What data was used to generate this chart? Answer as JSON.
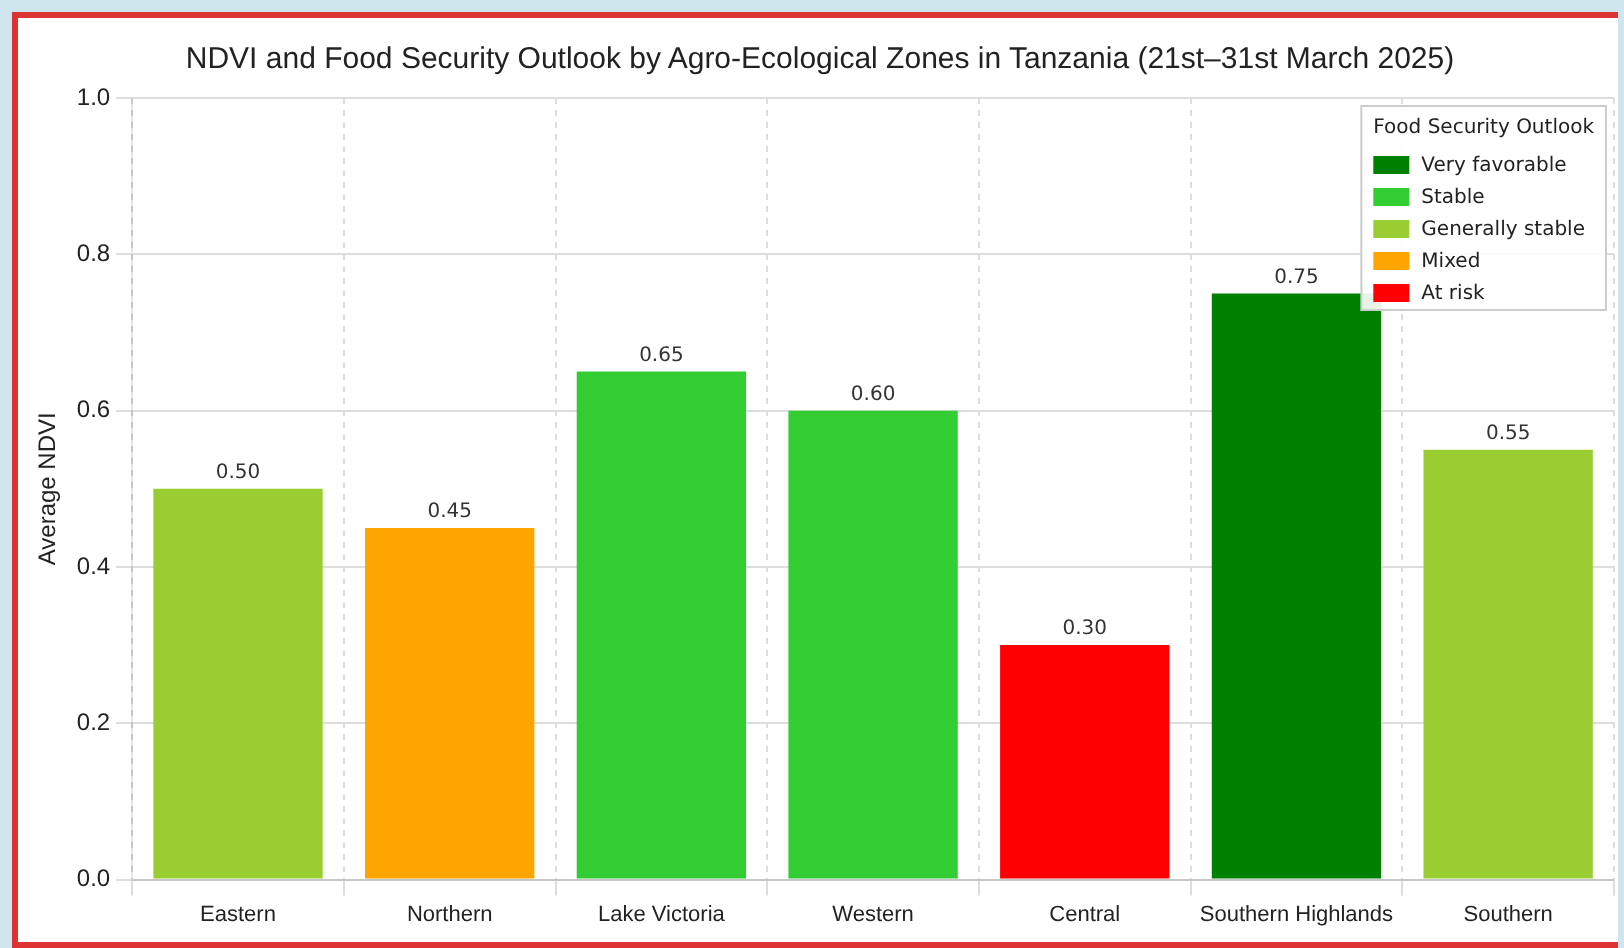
{
  "chart_data": {
    "type": "bar",
    "title": "NDVI and Food Security Outlook by Agro-Ecological Zones in Tanzania (21st–31st March 2025)",
    "ylabel": "Average NDVI",
    "legend_title": "Food Security Outlook",
    "categories": [
      "Eastern",
      "Northern",
      "Lake Victoria",
      "Western",
      "Central",
      "Southern Highlands",
      "Southern"
    ],
    "series": [
      {
        "name": "Very favorable",
        "color": "#008000",
        "values": [
          null,
          null,
          null,
          null,
          null,
          0.75,
          null
        ],
        "value_labels": [
          null,
          null,
          null,
          null,
          null,
          "0.75",
          null
        ]
      },
      {
        "name": "Stable",
        "color": "#32cd32",
        "values": [
          null,
          null,
          0.65,
          0.6,
          null,
          null,
          null
        ],
        "value_labels": [
          null,
          null,
          "0.65",
          "0.60",
          null,
          null,
          null
        ]
      },
      {
        "name": "Generally stable",
        "color": "#9acd32",
        "values": [
          0.5,
          null,
          null,
          null,
          null,
          null,
          0.55
        ],
        "value_labels": [
          "0.50",
          null,
          null,
          null,
          null,
          null,
          "0.55"
        ]
      },
      {
        "name": "Mixed",
        "color": "#ffa500",
        "values": [
          null,
          0.45,
          null,
          null,
          null,
          null,
          null
        ],
        "value_labels": [
          null,
          "0.45",
          null,
          null,
          null,
          null,
          null
        ]
      },
      {
        "name": "At risk",
        "color": "#ff0000",
        "values": [
          null,
          null,
          null,
          null,
          0.3,
          null,
          null
        ],
        "value_labels": [
          null,
          null,
          null,
          null,
          "0.30",
          null,
          null
        ]
      }
    ],
    "ylim": [
      0,
      1
    ],
    "yticks": [
      {
        "value": 0,
        "label": "0.0"
      },
      0.2,
      0.4,
      0.6,
      0.8,
      {
        "value": 1,
        "label": "1.0"
      }
    ],
    "grid": true,
    "legend": "top right"
  }
}
